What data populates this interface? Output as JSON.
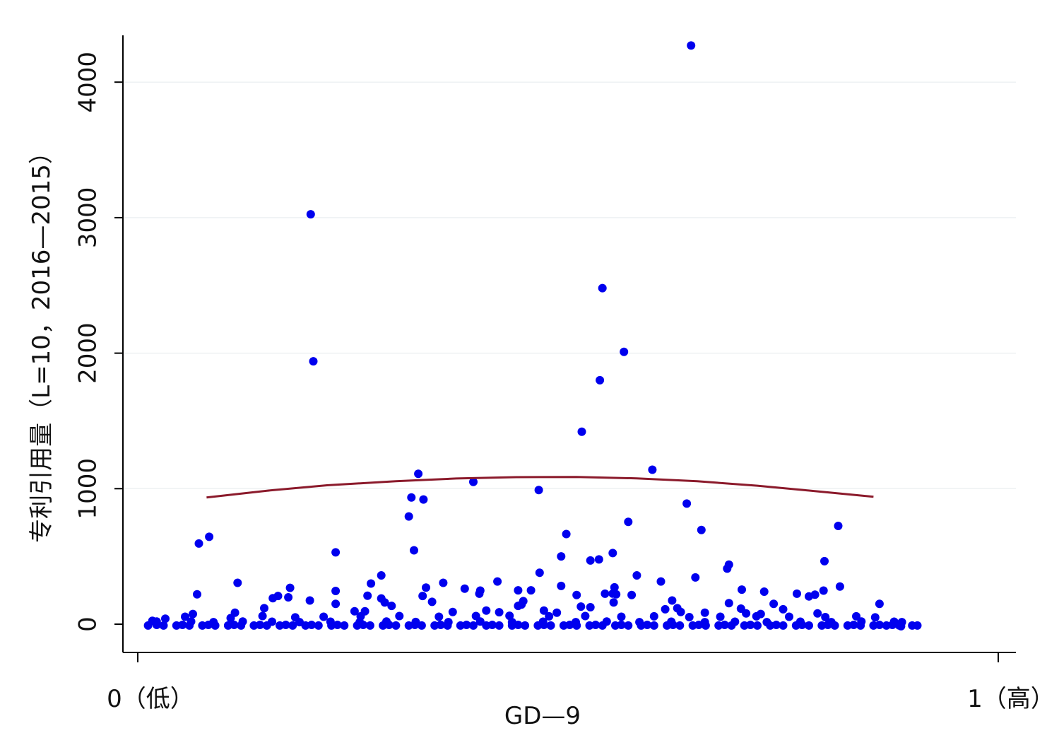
{
  "chart_data": {
    "type": "scatter",
    "title": "",
    "xlabel": "GD—9",
    "ylabel": "专利引用量（L=10，2016—2015）",
    "xlim": [
      0,
      1
    ],
    "ylim": [
      -200,
      4350
    ],
    "x_ticks": [
      {
        "value": 0,
        "label": "0（低）"
      },
      {
        "value": 1,
        "label": "1（高）"
      }
    ],
    "y_ticks": [
      {
        "value": 0,
        "label": "0"
      },
      {
        "value": 1000,
        "label": "1000"
      },
      {
        "value": 2000,
        "label": "2000"
      },
      {
        "value": 3000,
        "label": "3000"
      },
      {
        "value": 4000,
        "label": "4000"
      }
    ],
    "grid": "horizontal",
    "series": [
      {
        "kind": "points",
        "color": "#0000ee",
        "points": [
          [
            0.643,
            4270
          ],
          [
            0.201,
            3025
          ],
          [
            0.54,
            2480
          ],
          [
            0.204,
            1940
          ],
          [
            0.565,
            2010
          ],
          [
            0.537,
            1800
          ],
          [
            0.516,
            1420
          ],
          [
            0.598,
            1140
          ],
          [
            0.326,
            1110
          ],
          [
            0.39,
            1050
          ],
          [
            0.466,
            990
          ],
          [
            0.638,
            890
          ],
          [
            0.318,
            935
          ],
          [
            0.332,
            920
          ],
          [
            0.315,
            795
          ],
          [
            0.57,
            755
          ],
          [
            0.655,
            695
          ],
          [
            0.814,
            725
          ],
          [
            0.083,
            645
          ],
          [
            0.071,
            595
          ],
          [
            0.498,
            665
          ],
          [
            0.321,
            545
          ],
          [
            0.552,
            525
          ],
          [
            0.23,
            530
          ],
          [
            0.492,
            500
          ],
          [
            0.526,
            470
          ],
          [
            0.536,
            478
          ],
          [
            0.798,
            465
          ],
          [
            0.687,
            440
          ],
          [
            0.685,
            410
          ],
          [
            0.467,
            380
          ],
          [
            0.283,
            360
          ],
          [
            0.58,
            360
          ],
          [
            0.648,
            345
          ],
          [
            0.608,
            315
          ],
          [
            0.418,
            315
          ],
          [
            0.116,
            305
          ],
          [
            0.355,
            305
          ],
          [
            0.271,
            300
          ],
          [
            0.335,
            270
          ],
          [
            0.177,
            268
          ],
          [
            0.38,
            262
          ],
          [
            0.554,
            272
          ],
          [
            0.816,
            278
          ],
          [
            0.492,
            282
          ],
          [
            0.442,
            250
          ],
          [
            0.457,
            250
          ],
          [
            0.398,
            248
          ],
          [
            0.23,
            245
          ],
          [
            0.702,
            255
          ],
          [
            0.797,
            248
          ],
          [
            0.728,
            240
          ],
          [
            0.069,
            220
          ],
          [
            0.397,
            225
          ],
          [
            0.543,
            225
          ],
          [
            0.552,
            226
          ],
          [
            0.556,
            220
          ],
          [
            0.766,
            225
          ],
          [
            0.787,
            218
          ],
          [
            0.163,
            208
          ],
          [
            0.51,
            215
          ],
          [
            0.78,
            205
          ],
          [
            0.283,
            190
          ],
          [
            0.331,
            208
          ],
          [
            0.175,
            198
          ],
          [
            0.157,
            192
          ],
          [
            0.287,
            160
          ],
          [
            0.342,
            165
          ],
          [
            0.448,
            170
          ],
          [
            0.446,
            145
          ],
          [
            0.2,
            175
          ],
          [
            0.23,
            150
          ],
          [
            0.267,
            210
          ],
          [
            0.621,
            175
          ],
          [
            0.687,
            155
          ],
          [
            0.553,
            160
          ],
          [
            0.574,
            215
          ],
          [
            0.862,
            150
          ],
          [
            0.739,
            150
          ],
          [
            0.295,
            135
          ],
          [
            0.442,
            135
          ],
          [
            0.515,
            130
          ],
          [
            0.526,
            125
          ],
          [
            0.701,
            115
          ],
          [
            0.613,
            110
          ],
          [
            0.147,
            118
          ],
          [
            0.627,
            118
          ],
          [
            0.75,
            110
          ],
          [
            0.405,
            100
          ],
          [
            0.472,
            100
          ],
          [
            0.42,
            88
          ],
          [
            0.366,
            90
          ],
          [
            0.264,
            95
          ],
          [
            0.252,
            95
          ],
          [
            0.487,
            85
          ],
          [
            0.631,
            90
          ],
          [
            0.659,
            85
          ],
          [
            0.707,
            80
          ],
          [
            0.724,
            75
          ],
          [
            0.79,
            80
          ],
          [
            0.113,
            85
          ],
          [
            0.064,
            75
          ],
          [
            0.055,
            55
          ],
          [
            0.032,
            40
          ],
          [
            0.108,
            45
          ],
          [
            0.145,
            60
          ],
          [
            0.183,
            50
          ],
          [
            0.216,
            55
          ],
          [
            0.259,
            58
          ],
          [
            0.304,
            60
          ],
          [
            0.35,
            55
          ],
          [
            0.393,
            60
          ],
          [
            0.432,
            62
          ],
          [
            0.478,
            58
          ],
          [
            0.52,
            60
          ],
          [
            0.562,
            55
          ],
          [
            0.6,
            58
          ],
          [
            0.641,
            52
          ],
          [
            0.677,
            55
          ],
          [
            0.719,
            58
          ],
          [
            0.757,
            55
          ],
          [
            0.799,
            52
          ],
          [
            0.835,
            58
          ],
          [
            0.857,
            50
          ],
          [
            0.017,
            25
          ],
          [
            0.022,
            20
          ],
          [
            0.062,
            20
          ],
          [
            0.088,
            15
          ],
          [
            0.122,
            20
          ],
          [
            0.156,
            18
          ],
          [
            0.188,
            15
          ],
          [
            0.224,
            18
          ],
          [
            0.258,
            15
          ],
          [
            0.289,
            20
          ],
          [
            0.323,
            16
          ],
          [
            0.361,
            15
          ],
          [
            0.398,
            20
          ],
          [
            0.435,
            15
          ],
          [
            0.471,
            18
          ],
          [
            0.509,
            15
          ],
          [
            0.545,
            20
          ],
          [
            0.583,
            15
          ],
          [
            0.62,
            18
          ],
          [
            0.659,
            15
          ],
          [
            0.694,
            18
          ],
          [
            0.731,
            15
          ],
          [
            0.77,
            18
          ],
          [
            0.806,
            15
          ],
          [
            0.841,
            20
          ],
          [
            0.879,
            18
          ],
          [
            0.012,
            -10
          ],
          [
            0.03,
            -10
          ],
          [
            0.045,
            -10
          ],
          [
            0.06,
            -10
          ],
          [
            0.075,
            -10
          ],
          [
            0.09,
            -10
          ],
          [
            0.105,
            -10
          ],
          [
            0.12,
            -10
          ],
          [
            0.135,
            -10
          ],
          [
            0.15,
            -10
          ],
          [
            0.165,
            -10
          ],
          [
            0.18,
            -10
          ],
          [
            0.195,
            -10
          ],
          [
            0.21,
            -10
          ],
          [
            0.225,
            -10
          ],
          [
            0.24,
            -10
          ],
          [
            0.255,
            -10
          ],
          [
            0.27,
            -10
          ],
          [
            0.285,
            -10
          ],
          [
            0.3,
            -10
          ],
          [
            0.315,
            -10
          ],
          [
            0.33,
            -10
          ],
          [
            0.345,
            -10
          ],
          [
            0.36,
            -10
          ],
          [
            0.375,
            -10
          ],
          [
            0.39,
            -10
          ],
          [
            0.405,
            -10
          ],
          [
            0.42,
            -10
          ],
          [
            0.435,
            -10
          ],
          [
            0.45,
            -10
          ],
          [
            0.465,
            -10
          ],
          [
            0.48,
            -10
          ],
          [
            0.495,
            -10
          ],
          [
            0.51,
            -10
          ],
          [
            0.525,
            -10
          ],
          [
            0.54,
            -10
          ],
          [
            0.555,
            -10
          ],
          [
            0.57,
            -10
          ],
          [
            0.585,
            -10
          ],
          [
            0.6,
            -10
          ],
          [
            0.615,
            -10
          ],
          [
            0.63,
            -10
          ],
          [
            0.645,
            -10
          ],
          [
            0.66,
            -10
          ],
          [
            0.675,
            -10
          ],
          [
            0.69,
            -10
          ],
          [
            0.705,
            -10
          ],
          [
            0.72,
            -10
          ],
          [
            0.735,
            -10
          ],
          [
            0.75,
            -10
          ],
          [
            0.765,
            -10
          ],
          [
            0.78,
            -10
          ],
          [
            0.795,
            -10
          ],
          [
            0.81,
            -10
          ],
          [
            0.825,
            -10
          ],
          [
            0.84,
            -10
          ],
          [
            0.855,
            -10
          ],
          [
            0.87,
            -10
          ],
          [
            0.885,
            -10
          ],
          [
            0.9,
            -10
          ],
          [
            0.906,
            -10
          ],
          [
            0.022,
            -5
          ],
          [
            0.052,
            -5
          ],
          [
            0.082,
            -5
          ],
          [
            0.112,
            -5
          ],
          [
            0.142,
            -5
          ],
          [
            0.172,
            -5
          ],
          [
            0.202,
            -5
          ],
          [
            0.232,
            -5
          ],
          [
            0.262,
            -5
          ],
          [
            0.292,
            -5
          ],
          [
            0.322,
            -5
          ],
          [
            0.352,
            -5
          ],
          [
            0.382,
            -5
          ],
          [
            0.412,
            -5
          ],
          [
            0.442,
            -5
          ],
          [
            0.472,
            -5
          ],
          [
            0.502,
            -5
          ],
          [
            0.532,
            -5
          ],
          [
            0.562,
            -5
          ],
          [
            0.592,
            -5
          ],
          [
            0.622,
            -5
          ],
          [
            0.652,
            -5
          ],
          [
            0.682,
            -5
          ],
          [
            0.712,
            -5
          ],
          [
            0.742,
            -5
          ],
          [
            0.772,
            -5
          ],
          [
            0.802,
            -5
          ],
          [
            0.832,
            -5
          ],
          [
            0.862,
            -5
          ],
          [
            0.877,
            -5
          ],
          [
            0.887,
            -15
          ],
          [
            0.888,
            15
          ]
        ]
      },
      {
        "kind": "fitted-curve",
        "color": "#8b1a2b",
        "points": [
          [
            0.08,
            935
          ],
          [
            0.15,
            985
          ],
          [
            0.22,
            1025
          ],
          [
            0.3,
            1055
          ],
          [
            0.37,
            1075
          ],
          [
            0.44,
            1085
          ],
          [
            0.51,
            1086
          ],
          [
            0.58,
            1076
          ],
          [
            0.65,
            1055
          ],
          [
            0.72,
            1022
          ],
          [
            0.79,
            980
          ],
          [
            0.855,
            940
          ]
        ]
      }
    ]
  }
}
